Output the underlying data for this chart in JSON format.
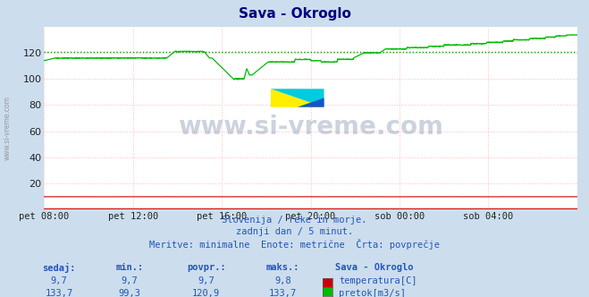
{
  "title": "Sava - Okroglo",
  "title_color": "#000080",
  "bg_color": "#ccdded",
  "plot_bg_color": "#ffffff",
  "grid_color": "#ffbbbb",
  "xlabel_ticks": [
    "pet 08:00",
    "pet 12:00",
    "pet 16:00",
    "pet 20:00",
    "sob 00:00",
    "sob 04:00"
  ],
  "tick_positions": [
    0,
    288,
    576,
    864,
    1152,
    1440
  ],
  "ylim": [
    0,
    140
  ],
  "yticks": [
    20,
    40,
    60,
    80,
    100,
    120
  ],
  "avg_line_value": 120.9,
  "avg_line_color": "#009900",
  "flow_line_color": "#00bb00",
  "temp_line_color": "#cc0000",
  "watermark_text": "www.si-vreme.com",
  "watermark_color": "#1a3a6a",
  "subtitle_lines": [
    "Slovenija / reke in morje.",
    "zadnji dan / 5 minut.",
    "Meritve: minimalne  Enote: metrične  Črta: povprečje"
  ],
  "subtitle_color": "#2255bb",
  "table_headers": [
    "sedaj:",
    "min.:",
    "povpr.:",
    "maks.:"
  ],
  "table_color": "#2255bb",
  "station_label": "Sava - Okroglo",
  "temp_sedaj": "9,7",
  "temp_min": "9,7",
  "temp_avg": "9,7",
  "temp_max": "9,8",
  "flow_sedaj": "133,7",
  "flow_min": "99,3",
  "flow_avg": "120,9",
  "flow_max": "133,7",
  "temp_color": "#cc0000",
  "flow_color": "#00bb00",
  "left_label": "www.si-vreme.com",
  "x_axis_color": "#cc0000",
  "total_points": 1728,
  "n_ticks": 6
}
